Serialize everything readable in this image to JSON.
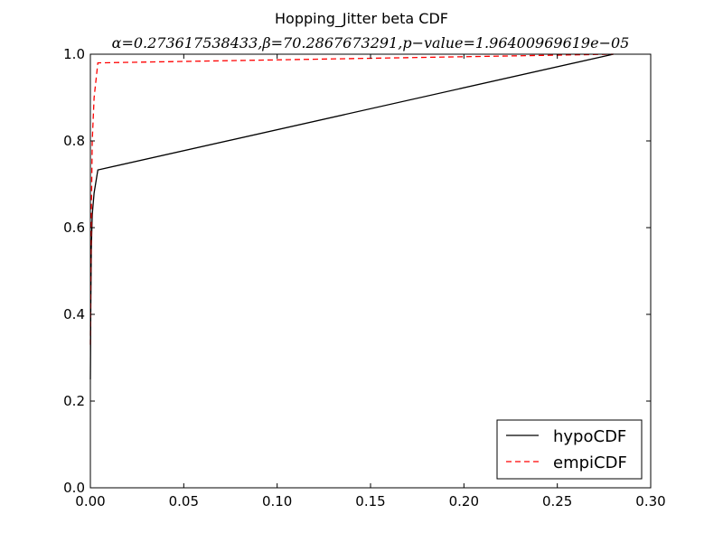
{
  "chart_data": {
    "type": "line",
    "title": "Hopping_Jitter beta CDF",
    "subtitle": "α=0.273617538433,β=70.2867673291,p−value=1.96400969619e−05",
    "xlabel": "",
    "ylabel": "",
    "xlim": [
      0.0,
      0.3
    ],
    "ylim": [
      0.0,
      1.0
    ],
    "x_ticks": [
      "0.00",
      "0.05",
      "0.10",
      "0.15",
      "0.20",
      "0.25",
      "0.30"
    ],
    "y_ticks": [
      "0.0",
      "0.2",
      "0.4",
      "0.6",
      "0.8",
      "1.0"
    ],
    "grid": false,
    "legend_position": "lower-right",
    "series": [
      {
        "name": "hypoCDF",
        "color": "#000000",
        "style": "solid",
        "x": [
          0.0,
          0.0002,
          0.0005,
          0.001,
          0.002,
          0.004,
          0.28
        ],
        "y": [
          0.25,
          0.4,
          0.55,
          0.63,
          0.68,
          0.733,
          1.0
        ]
      },
      {
        "name": "empiCDF",
        "color": "#ff0000",
        "style": "dashed",
        "x": [
          0.0,
          0.0003,
          0.001,
          0.002,
          0.004,
          0.28
        ],
        "y": [
          0.33,
          0.55,
          0.8,
          0.9,
          0.98,
          1.0
        ]
      }
    ]
  }
}
